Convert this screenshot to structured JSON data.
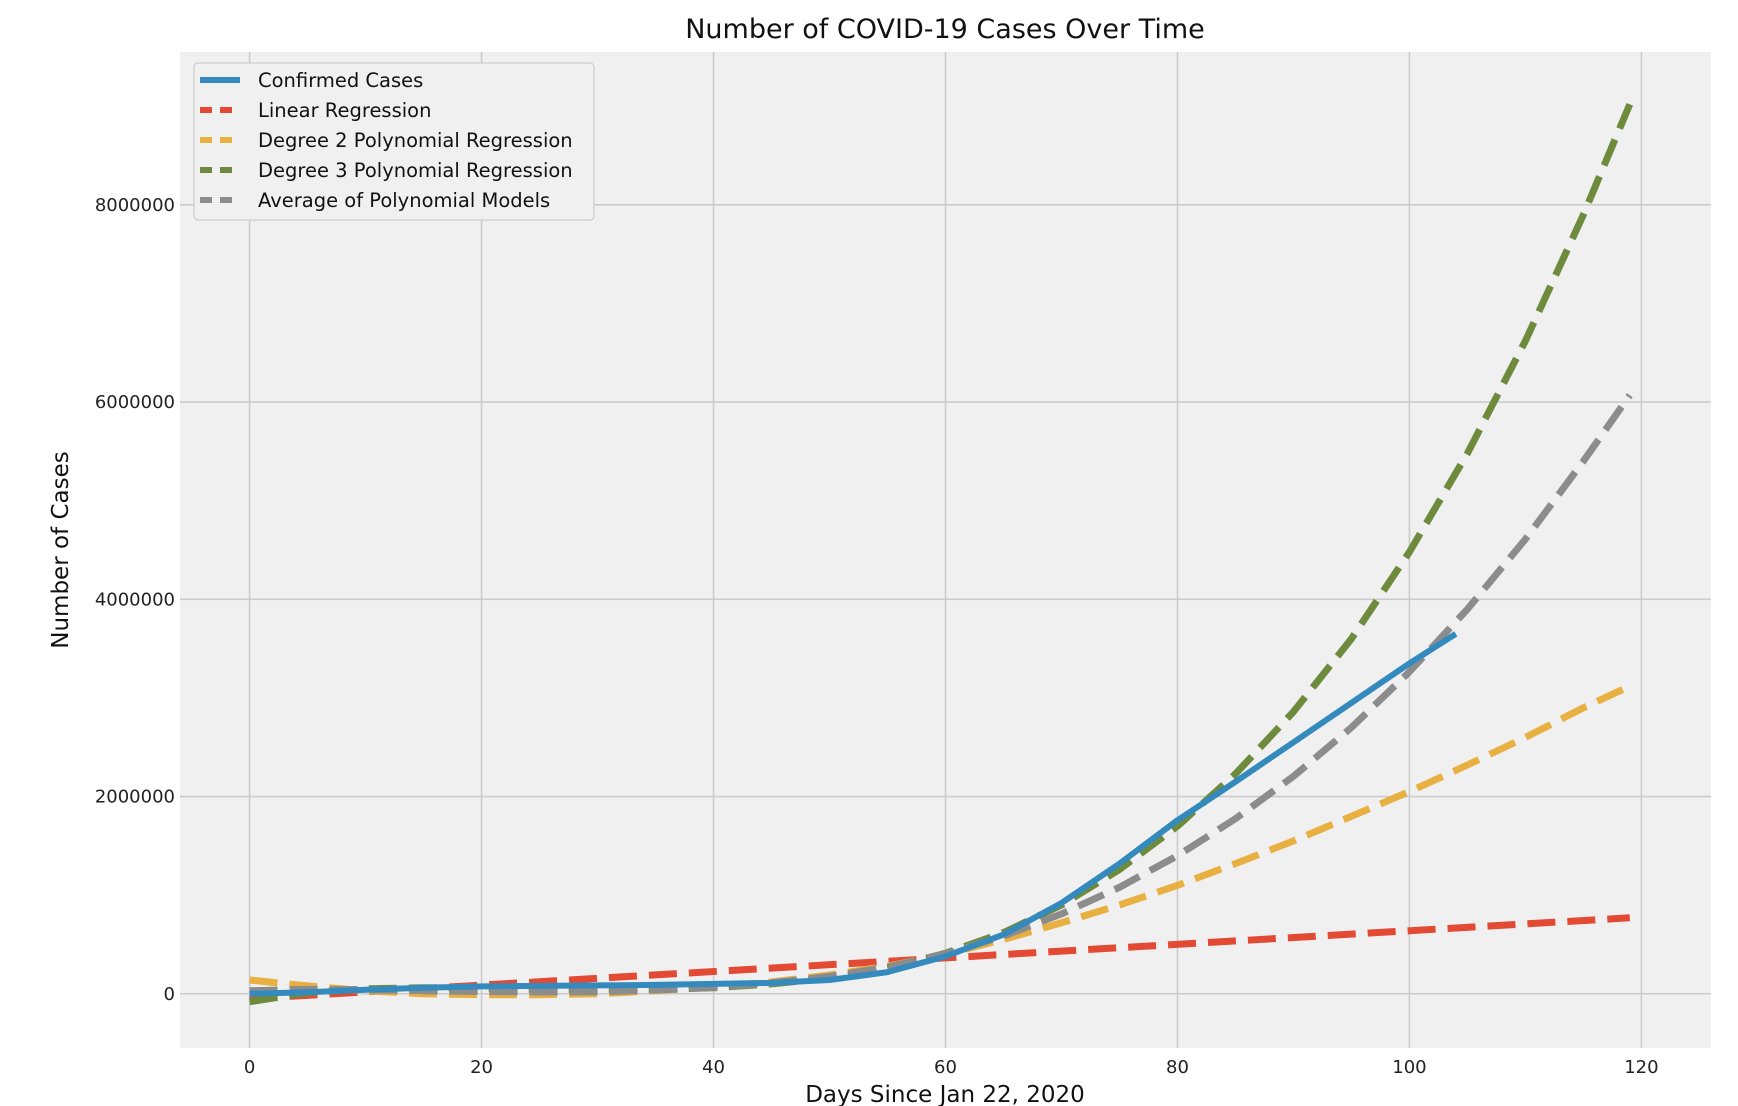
{
  "chart_data": {
    "type": "line",
    "title": "Number of COVID-19 Cases Over Time",
    "xlabel": "Days Since Jan 22, 2020",
    "ylabel": "Number of Cases",
    "xlim": [
      -6,
      126
    ],
    "ylim": [
      -550000,
      9550000
    ],
    "xticks": [
      0,
      20,
      40,
      60,
      80,
      100,
      120
    ],
    "yticks": [
      0,
      2000000,
      4000000,
      6000000,
      8000000
    ],
    "grid": true,
    "legend_position": "top-left",
    "series": [
      {
        "name": "Confirmed Cases",
        "style": "solid",
        "color": "#348ABD",
        "x": [
          0,
          5,
          10,
          15,
          20,
          25,
          30,
          35,
          40,
          45,
          50,
          55,
          60,
          65,
          70,
          75,
          80,
          85,
          90,
          95,
          100,
          104
        ],
        "y": [
          0,
          15000,
          40000,
          60000,
          75000,
          80000,
          85000,
          90000,
          100000,
          110000,
          140000,
          220000,
          380000,
          600000,
          920000,
          1320000,
          1760000,
          2150000,
          2550000,
          2950000,
          3350000,
          3650000
        ]
      },
      {
        "name": "Linear Regression",
        "style": "dashed",
        "color": "#E24A33",
        "x": [
          0,
          119
        ],
        "y": [
          -50000,
          770000
        ]
      },
      {
        "name": "Degree 2 Polynomial Regression",
        "style": "dashed",
        "color": "#E8B040",
        "x": [
          0,
          5,
          10,
          15,
          20,
          25,
          30,
          35,
          40,
          45,
          50,
          55,
          60,
          65,
          70,
          75,
          80,
          85,
          90,
          95,
          100,
          105,
          110,
          115,
          119
        ],
        "y": [
          140000,
          80000,
          30000,
          0,
          -10000,
          -10000,
          0,
          30000,
          70000,
          120000,
          190000,
          280000,
          400000,
          550000,
          720000,
          900000,
          1100000,
          1320000,
          1550000,
          1800000,
          2050000,
          2320000,
          2600000,
          2900000,
          3120000
        ]
      },
      {
        "name": "Degree 3 Polynomial Regression",
        "style": "dashed",
        "color": "#6E8B3D",
        "x": [
          0,
          5,
          10,
          15,
          20,
          25,
          30,
          35,
          40,
          45,
          50,
          55,
          60,
          65,
          70,
          75,
          80,
          85,
          90,
          95,
          100,
          105,
          110,
          115,
          119
        ],
        "y": [
          -80000,
          10000,
          50000,
          60000,
          55000,
          45000,
          40000,
          45000,
          60000,
          100000,
          160000,
          260000,
          410000,
          620000,
          900000,
          1260000,
          1700000,
          2230000,
          2860000,
          3600000,
          4480000,
          5480000,
          6620000,
          7900000,
          9020000
        ]
      },
      {
        "name": "Average of Polynomial Models",
        "style": "dashed",
        "color": "#8C8C8C",
        "x": [
          0,
          5,
          10,
          15,
          20,
          25,
          30,
          35,
          40,
          45,
          50,
          55,
          60,
          65,
          70,
          75,
          80,
          85,
          90,
          95,
          100,
          105,
          110,
          115,
          119
        ],
        "y": [
          30000,
          45000,
          40000,
          30000,
          22000,
          18000,
          20000,
          37000,
          65000,
          110000,
          175000,
          270000,
          405000,
          585000,
          810000,
          1080000,
          1400000,
          1775000,
          2205000,
          2700000,
          3265000,
          3900000,
          4610000,
          5400000,
          6070000
        ]
      }
    ]
  }
}
